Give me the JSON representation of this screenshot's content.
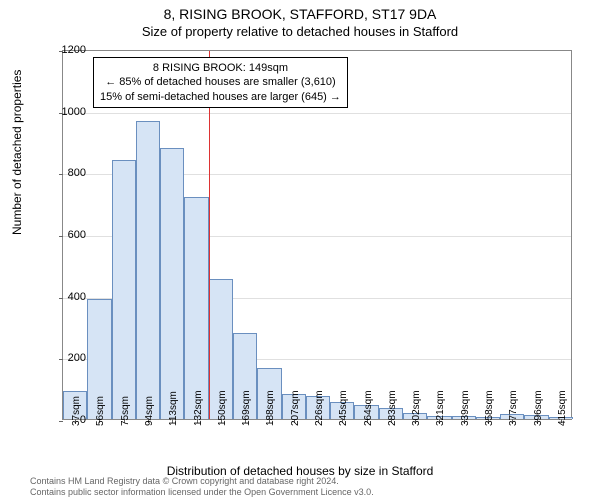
{
  "title": "8, RISING BROOK, STAFFORD, ST17 9DA",
  "subtitle": "Size of property relative to detached houses in Stafford",
  "ylabel": "Number of detached properties",
  "xlabel": "Distribution of detached houses by size in Stafford",
  "chart": {
    "type": "histogram",
    "ylim": [
      0,
      1200
    ],
    "ytick_step": 200,
    "yticks": [
      0,
      200,
      400,
      600,
      800,
      1000,
      1200
    ],
    "x_categories": [
      "37sqm",
      "56sqm",
      "75sqm",
      "94sqm",
      "113sqm",
      "132sqm",
      "150sqm",
      "169sqm",
      "188sqm",
      "207sqm",
      "226sqm",
      "245sqm",
      "264sqm",
      "283sqm",
      "302sqm",
      "321sqm",
      "339sqm",
      "358sqm",
      "377sqm",
      "396sqm",
      "415sqm"
    ],
    "values": [
      90,
      390,
      840,
      965,
      880,
      720,
      455,
      280,
      165,
      80,
      75,
      55,
      45,
      35,
      18,
      10,
      10,
      8,
      15,
      12,
      8
    ],
    "bar_fill": "#d6e4f5",
    "bar_stroke": "#6a8fbf",
    "bar_stroke_width": 1,
    "background_color": "#ffffff",
    "grid_color": "#e0e0e0",
    "axis_color": "#888888",
    "marker_x_index": 6,
    "marker_color": "#dd3333",
    "label_fontsize": 12,
    "tick_fontsize": 11,
    "xlabel_fontsize": 10
  },
  "annotation": {
    "line1": "8 RISING BROOK: 149sqm",
    "line2": "← 85% of detached houses are smaller (3,610)",
    "line3": "15% of semi-detached houses are larger (645) →",
    "border_color": "#000000",
    "background": "#ffffff",
    "fontsize": 11
  },
  "footer": {
    "line1": "Contains HM Land Registry data © Crown copyright and database right 2024.",
    "line2": "Contains public sector information licensed under the Open Government Licence v3.0."
  }
}
